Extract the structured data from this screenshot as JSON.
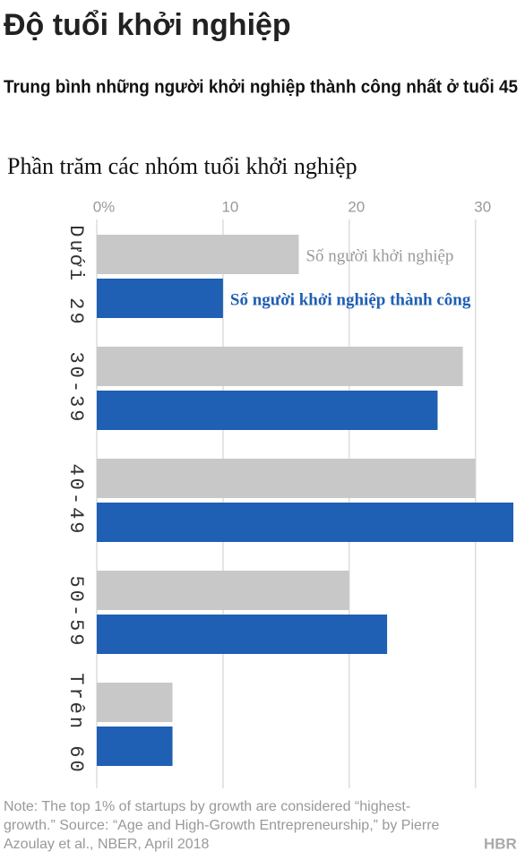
{
  "title": "Độ tuổi khởi nghiệp",
  "subtitle": "Trung bình những người khởi nghiệp thành công nhất ở tuổi 45",
  "note": "Note: The top 1% of startups by growth are considered “highest-growth.” Source: “Age and High-Growth Entrepreneurship,” by Pierre Azoulay et al., NBER, April 2018",
  "logo": "HBR",
  "chart_data": {
    "type": "bar",
    "orientation": "horizontal",
    "title": "Phần trăm các nhóm tuổi khởi nghiệp",
    "categories": [
      "Dưới 29",
      "30-39",
      "40-49",
      "50-59",
      "Trên 60"
    ],
    "series": [
      {
        "name": "Số người khởi nghiệp",
        "color": "#c8c8c8",
        "values": [
          16,
          29,
          30,
          20,
          6
        ]
      },
      {
        "name": "Số người khởi nghiệp thành công",
        "color": "#1f5fb4",
        "values": [
          10,
          27,
          33,
          23,
          6
        ]
      }
    ],
    "xlim": [
      0,
      33
    ],
    "xticks": [
      {
        "value": 0,
        "label": "0%"
      },
      10,
      20,
      30
    ],
    "grid": true
  }
}
